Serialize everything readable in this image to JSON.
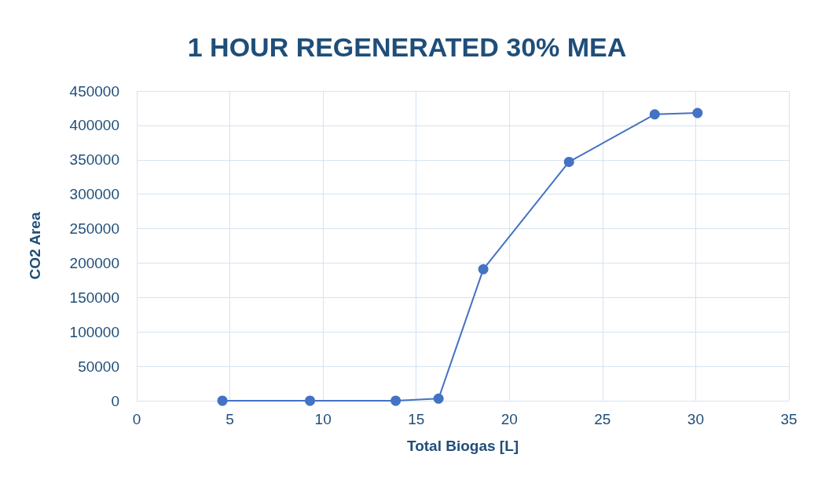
{
  "chart_data": {
    "type": "line",
    "title": "1 HOUR REGENERATED 30% MEA",
    "xlabel": "Total Biogas [L]",
    "ylabel": "CO2 Area",
    "x": [
      4.6,
      9.3,
      13.9,
      16.2,
      18.6,
      23.2,
      27.8,
      30.1
    ],
    "series": [
      {
        "color": "#4472c4",
        "values": [
          0,
          0,
          0,
          3000,
          191000,
          347000,
          416000,
          418000
        ]
      }
    ],
    "xlim": [
      0,
      35
    ],
    "xticks": [
      0,
      5,
      10,
      15,
      20,
      25,
      30,
      35
    ],
    "ylim": [
      0,
      450000
    ],
    "yticks": [
      0,
      50000,
      100000,
      150000,
      200000,
      250000,
      300000,
      350000,
      400000,
      450000
    ],
    "grid": true,
    "marker": "circle",
    "line_style": "solid"
  }
}
